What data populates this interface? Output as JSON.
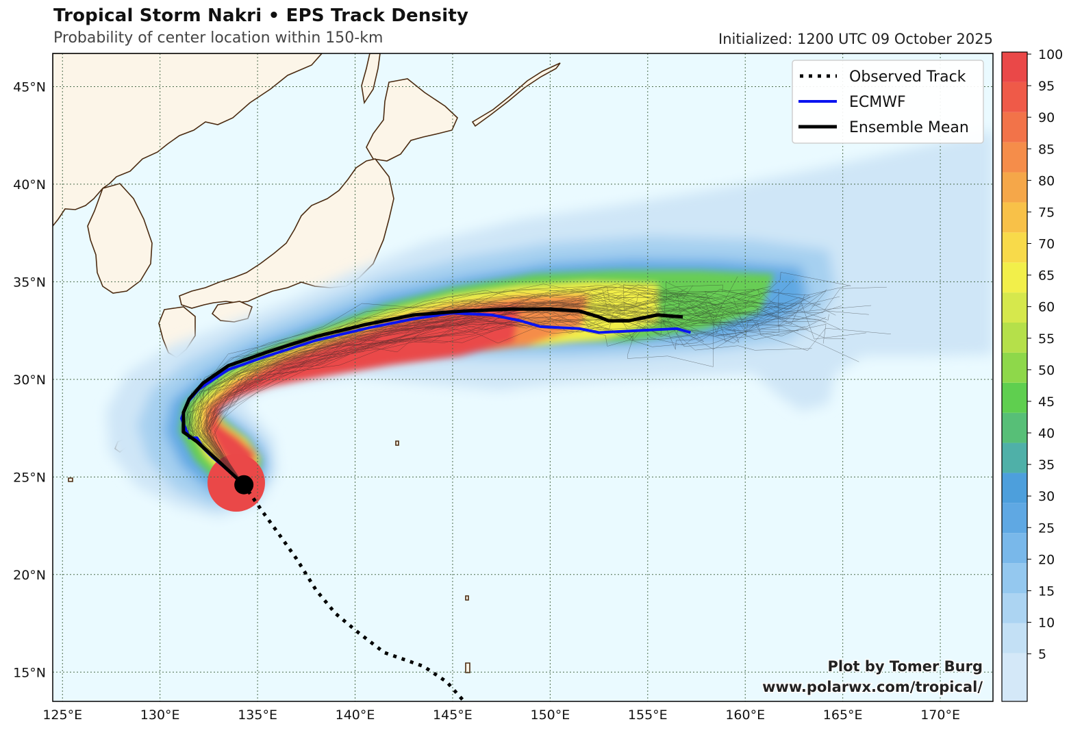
{
  "header": {
    "title": "Tropical Storm Nakri • EPS Track Density",
    "subtitle": "Probability of center location within 150-km",
    "initialized": "Initialized: 1200 UTC 09 October 2025"
  },
  "axes": {
    "lat_ticks": [
      "45°N",
      "40°N",
      "35°N",
      "30°N",
      "25°N",
      "20°N",
      "15°N"
    ],
    "lon_ticks": [
      "125°E",
      "130°E",
      "135°E",
      "140°E",
      "145°E",
      "150°E",
      "155°E",
      "160°E",
      "165°E",
      "170°E"
    ],
    "lat_values": [
      45,
      40,
      35,
      30,
      25,
      20,
      15
    ],
    "lon_values": [
      125,
      130,
      135,
      140,
      145,
      150,
      155,
      160,
      165,
      170
    ],
    "lon_range": [
      124.5,
      172.7
    ],
    "lat_range": [
      13.5,
      46.7
    ],
    "gridlines": "dotted"
  },
  "legend": {
    "placement": "top-right",
    "items": [
      {
        "label": "Observed Track",
        "style": "dotted",
        "color": "#000000"
      },
      {
        "label": "ECMWF",
        "style": "solid",
        "color": "#0a14f0"
      },
      {
        "label": "Ensemble Mean",
        "style": "solid",
        "color": "#000000"
      }
    ]
  },
  "colorbar": {
    "labels": [
      "100",
      "95",
      "90",
      "85",
      "80",
      "75",
      "70",
      "65",
      "60",
      "55",
      "50",
      "45",
      "40",
      "35",
      "30",
      "25",
      "20",
      "15",
      "10",
      "5"
    ],
    "colors": [
      "#d4e8f8",
      "#c3e0f5",
      "#acd4f2",
      "#94c8ef",
      "#79b8ea",
      "#5fa8e3",
      "#4d9fdc",
      "#4fb0a8",
      "#57bf77",
      "#5fcf4f",
      "#8ed84a",
      "#b5e04a",
      "#d6e84c",
      "#f2ef4a",
      "#f8da4a",
      "#f8c148",
      "#f5a749",
      "#f58d4a",
      "#f27349",
      "#ef5a48",
      "#ea4848"
    ]
  },
  "tracks": {
    "observed": [
      [
        145.5,
        13.6
      ],
      [
        144.7,
        14.5
      ],
      [
        143.5,
        15.3
      ],
      [
        141.5,
        16.0
      ],
      [
        140.2,
        17.0
      ],
      [
        139.0,
        18.0
      ],
      [
        138.0,
        19.2
      ],
      [
        137.0,
        20.8
      ],
      [
        136.0,
        22.2
      ],
      [
        135.2,
        23.3
      ],
      [
        134.3,
        24.6
      ]
    ],
    "ecmwf": [
      [
        134.3,
        24.6
      ],
      [
        133.3,
        25.5
      ],
      [
        132.7,
        26.0
      ],
      [
        132.2,
        26.5
      ],
      [
        131.9,
        27.0
      ],
      [
        131.5,
        27.0
      ],
      [
        131.1,
        28.0
      ],
      [
        131.4,
        28.8
      ],
      [
        132.0,
        29.5
      ],
      [
        133.5,
        30.5
      ],
      [
        135.5,
        31.2
      ],
      [
        138.0,
        32.0
      ],
      [
        140.5,
        32.6
      ],
      [
        143.0,
        33.1
      ],
      [
        145.0,
        33.4
      ],
      [
        147.0,
        33.3
      ],
      [
        148.5,
        33.0
      ],
      [
        149.5,
        32.7
      ],
      [
        151.5,
        32.6
      ],
      [
        152.5,
        32.4
      ],
      [
        154.5,
        32.5
      ],
      [
        156.5,
        32.6
      ],
      [
        157.2,
        32.4
      ]
    ],
    "ensemble_mean": [
      [
        134.3,
        24.6
      ],
      [
        133.0,
        25.8
      ],
      [
        131.9,
        26.8
      ],
      [
        131.2,
        27.3
      ],
      [
        131.2,
        28.3
      ],
      [
        131.5,
        29.0
      ],
      [
        132.2,
        29.8
      ],
      [
        133.5,
        30.7
      ],
      [
        135.5,
        31.4
      ],
      [
        138.0,
        32.2
      ],
      [
        140.5,
        32.8
      ],
      [
        143.0,
        33.3
      ],
      [
        145.5,
        33.5
      ],
      [
        148.0,
        33.6
      ],
      [
        150.0,
        33.6
      ],
      [
        151.5,
        33.5
      ],
      [
        152.5,
        33.2
      ],
      [
        153.0,
        33.0
      ],
      [
        154.0,
        33.0
      ],
      [
        155.5,
        33.3
      ],
      [
        156.8,
        33.2
      ]
    ],
    "current_position": [
      134.3,
      24.6
    ]
  },
  "credit": {
    "line1": "Plot by Tomer Burg",
    "line2": "www.polarwx.com/tropical/"
  }
}
